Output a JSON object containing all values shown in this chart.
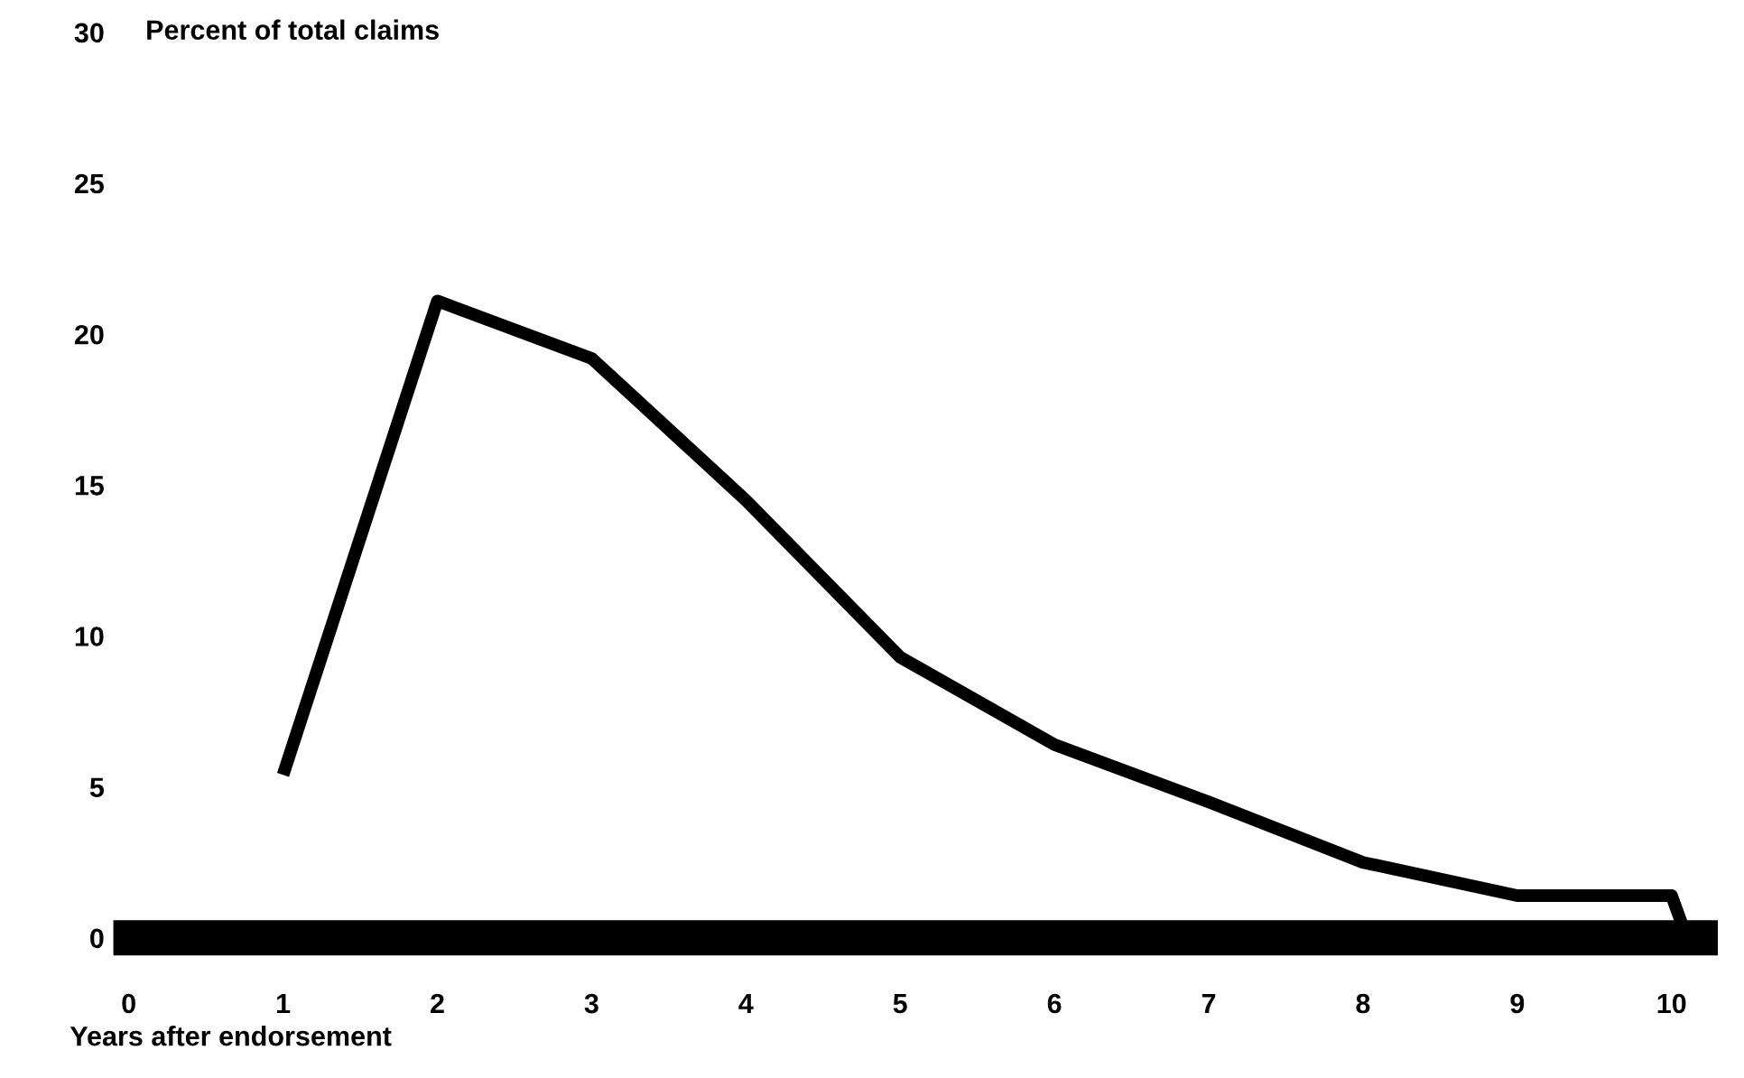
{
  "chart_data": {
    "type": "line",
    "ylabel": "Percent of total claims",
    "xlabel": "Years after endorsement",
    "x": [
      1,
      2,
      3,
      4,
      5,
      6,
      7,
      8,
      9,
      10,
      10.1
    ],
    "series": [
      {
        "color": "#000000",
        "values": [
          5.4,
          21.1,
          19.2,
          14.5,
          9.3,
          6.4,
          4.5,
          2.5,
          1.4,
          1.4,
          0
        ]
      }
    ],
    "xlim": [
      -0.1,
      10.3
    ],
    "xticks": [
      0,
      1,
      2,
      3,
      4,
      5,
      6,
      7,
      8,
      9,
      10
    ],
    "ylim": [
      0,
      30
    ],
    "yticks": [
      0,
      5,
      10,
      15,
      20,
      25,
      30
    ],
    "grid": false,
    "legend": false,
    "marker": "none",
    "line_style": "solid"
  }
}
